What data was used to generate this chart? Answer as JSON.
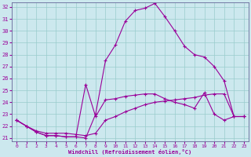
{
  "title": "",
  "xlabel": "Windchill (Refroidissement éolien,°C)",
  "ylabel": "",
  "bg_color": "#cce8ee",
  "line_color": "#990099",
  "grid_color": "#99cccc",
  "xlim": [
    -0.5,
    23.5
  ],
  "ylim": [
    20.7,
    32.4
  ],
  "yticks": [
    21,
    22,
    23,
    24,
    25,
    26,
    27,
    28,
    29,
    30,
    31,
    32
  ],
  "xticks": [
    0,
    1,
    2,
    3,
    4,
    5,
    6,
    7,
    8,
    9,
    10,
    11,
    12,
    13,
    14,
    15,
    16,
    17,
    18,
    19,
    20,
    21,
    22,
    23
  ],
  "line1_x": [
    0,
    1,
    2,
    3,
    4,
    5,
    6,
    7,
    8,
    9,
    10,
    11,
    12,
    13,
    14,
    15,
    16,
    17,
    18,
    19,
    20,
    21,
    22,
    23
  ],
  "line1_y": [
    22.5,
    22.0,
    21.5,
    21.2,
    21.2,
    21.1,
    21.1,
    21.0,
    23.0,
    27.5,
    28.8,
    30.8,
    31.7,
    31.9,
    32.3,
    31.2,
    30.0,
    28.7,
    28.0,
    27.8,
    27.0,
    25.8,
    22.8,
    22.8
  ],
  "line2_x": [
    0,
    1,
    2,
    3,
    4,
    5,
    6,
    7,
    8,
    9,
    10,
    11,
    12,
    13,
    14,
    15,
    16,
    17,
    18,
    19,
    20,
    21,
    22,
    23
  ],
  "line2_y": [
    22.5,
    22.0,
    21.6,
    21.4,
    21.4,
    21.4,
    21.3,
    21.2,
    21.4,
    22.5,
    22.8,
    23.2,
    23.5,
    23.8,
    24.0,
    24.1,
    24.2,
    24.3,
    24.4,
    24.6,
    24.7,
    24.7,
    22.8,
    22.8
  ],
  "line3_x": [
    0,
    1,
    2,
    3,
    4,
    5,
    6,
    7,
    8,
    9,
    10,
    11,
    12,
    13,
    14,
    15,
    16,
    17,
    18,
    19,
    20,
    21,
    22,
    23
  ],
  "line3_y": [
    22.5,
    22.0,
    21.5,
    21.2,
    21.2,
    21.1,
    21.1,
    25.5,
    22.8,
    24.2,
    24.3,
    24.5,
    24.6,
    24.7,
    24.7,
    24.3,
    24.0,
    23.8,
    23.5,
    24.8,
    23.0,
    22.5,
    22.8,
    22.8
  ]
}
